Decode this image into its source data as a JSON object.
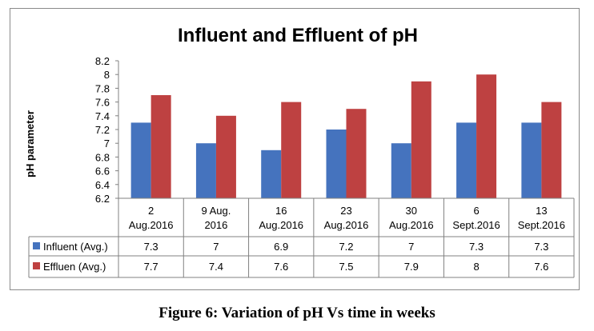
{
  "figure_caption": "Figure 6: Variation of pH Vs time in weeks",
  "chart_data": {
    "type": "bar",
    "title": "Influent and Effluent of pH",
    "xlabel": "",
    "ylabel": "pH parameter",
    "ylim": [
      6.2,
      8.2
    ],
    "yticks": [
      6.2,
      6.4,
      6.6,
      6.8,
      7,
      7.2,
      7.4,
      7.6,
      7.8,
      8,
      8.2
    ],
    "ytick_labels": [
      "6.2",
      "6.4",
      "6.6",
      "6.8",
      "7",
      "7.2",
      "7.4",
      "7.6",
      "7.8",
      "8",
      "8.2"
    ],
    "grid": false,
    "legend_placement": "data-table",
    "categories": [
      [
        "2",
        "Aug.2016"
      ],
      [
        "9 Aug.",
        "2016"
      ],
      [
        "16",
        "Aug.2016"
      ],
      [
        "23",
        "Aug.2016"
      ],
      [
        "30",
        "Aug.2016"
      ],
      [
        "6",
        "Sept.2016"
      ],
      [
        "13",
        "Sept.2016"
      ]
    ],
    "series": [
      {
        "name": "Influent (Avg.)",
        "color": "#4573BE",
        "values": [
          7.3,
          7,
          6.9,
          7.2,
          7,
          7.3,
          7.3
        ],
        "labels": [
          "7.3",
          "7",
          "6.9",
          "7.2",
          "7",
          "7.3",
          "7.3"
        ]
      },
      {
        "name": "Effluen (Avg.)",
        "color": "#BE4141",
        "values": [
          7.7,
          7.4,
          7.6,
          7.5,
          7.9,
          8,
          7.6
        ],
        "labels": [
          "7.7",
          "7.4",
          "7.6",
          "7.5",
          "7.9",
          "8",
          "7.6"
        ]
      }
    ]
  }
}
